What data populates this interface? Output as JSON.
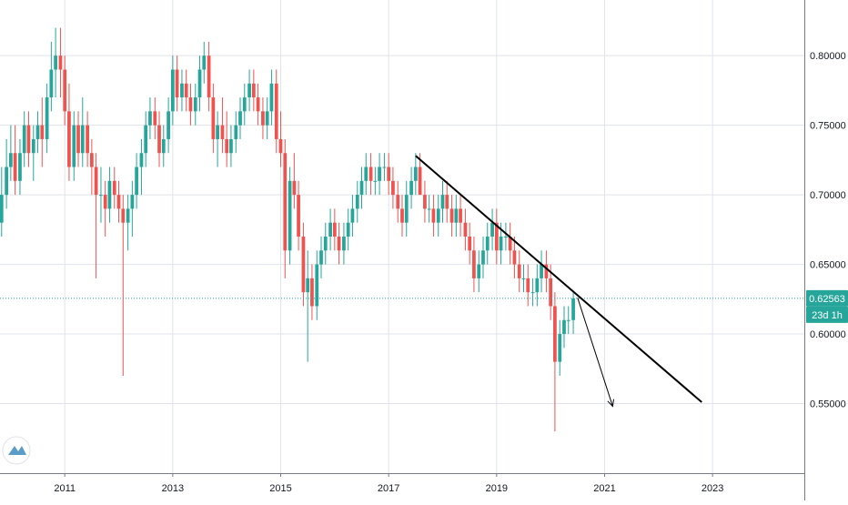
{
  "chart_data": {
    "type": "candlestick",
    "interval": "monthly",
    "colors": {
      "up": "#26a69a",
      "down": "#ef5350",
      "grid": "#e0e3eb",
      "axis_text": "#131722",
      "last_price": "#26a69a",
      "trendline": "#000000",
      "arrow": "#000000",
      "logo": "#5b9cc9"
    },
    "y_ticks": [
      "0.55000",
      "0.60000",
      "0.65000",
      "0.70000",
      "0.75000",
      "0.80000"
    ],
    "y_tick_values": [
      0.55,
      0.6,
      0.65,
      0.7,
      0.75,
      0.8
    ],
    "x_ticks": [
      "2011",
      "2013",
      "2015",
      "2017",
      "2019",
      "2021",
      "2023"
    ],
    "x_tick_values": [
      2011,
      2013,
      2015,
      2017,
      2019,
      2021,
      2023
    ],
    "ylim": [
      0.5,
      0.84
    ],
    "xlim": [
      2009.8,
      2024.7
    ],
    "last_price": {
      "value": 0.62563,
      "label": "0.62563",
      "countdown": "23d 1h"
    },
    "trendline": {
      "start": [
        2017.5,
        0.728
      ],
      "end": [
        2022.8,
        0.551
      ]
    },
    "projection_arrow": {
      "start": [
        2020.5,
        0.626
      ],
      "end": [
        2021.15,
        0.548
      ]
    },
    "candles": [
      [
        2009.83,
        0.68,
        0.72,
        0.67,
        0.7
      ],
      [
        2009.92,
        0.7,
        0.74,
        0.69,
        0.72
      ],
      [
        2010.0,
        0.72,
        0.75,
        0.71,
        0.73
      ],
      [
        2010.08,
        0.73,
        0.75,
        0.7,
        0.71
      ],
      [
        2010.17,
        0.71,
        0.74,
        0.7,
        0.73
      ],
      [
        2010.25,
        0.73,
        0.76,
        0.72,
        0.75
      ],
      [
        2010.33,
        0.75,
        0.76,
        0.72,
        0.73
      ],
      [
        2010.42,
        0.73,
        0.75,
        0.71,
        0.74
      ],
      [
        2010.5,
        0.74,
        0.76,
        0.73,
        0.75
      ],
      [
        2010.58,
        0.75,
        0.77,
        0.72,
        0.74
      ],
      [
        2010.67,
        0.74,
        0.78,
        0.73,
        0.77
      ],
      [
        2010.75,
        0.77,
        0.81,
        0.76,
        0.79
      ],
      [
        2010.83,
        0.79,
        0.82,
        0.77,
        0.8
      ],
      [
        2010.92,
        0.8,
        0.82,
        0.77,
        0.79
      ],
      [
        2011.0,
        0.79,
        0.8,
        0.75,
        0.76
      ],
      [
        2011.08,
        0.76,
        0.78,
        0.71,
        0.72
      ],
      [
        2011.17,
        0.72,
        0.76,
        0.71,
        0.75
      ],
      [
        2011.25,
        0.75,
        0.76,
        0.72,
        0.73
      ],
      [
        2011.33,
        0.73,
        0.77,
        0.72,
        0.75
      ],
      [
        2011.42,
        0.75,
        0.76,
        0.72,
        0.73
      ],
      [
        2011.5,
        0.73,
        0.74,
        0.7,
        0.72
      ],
      [
        2011.58,
        0.72,
        0.73,
        0.64,
        0.7
      ],
      [
        2011.67,
        0.7,
        0.72,
        0.68,
        0.7
      ],
      [
        2011.75,
        0.7,
        0.71,
        0.67,
        0.69
      ],
      [
        2011.83,
        0.69,
        0.72,
        0.68,
        0.71
      ],
      [
        2011.92,
        0.71,
        0.72,
        0.69,
        0.7
      ],
      [
        2012.0,
        0.7,
        0.71,
        0.68,
        0.69
      ],
      [
        2012.08,
        0.69,
        0.7,
        0.57,
        0.68
      ],
      [
        2012.17,
        0.68,
        0.7,
        0.66,
        0.69
      ],
      [
        2012.25,
        0.69,
        0.71,
        0.67,
        0.7
      ],
      [
        2012.33,
        0.7,
        0.73,
        0.69,
        0.72
      ],
      [
        2012.42,
        0.72,
        0.74,
        0.7,
        0.73
      ],
      [
        2012.5,
        0.73,
        0.76,
        0.72,
        0.75
      ],
      [
        2012.58,
        0.75,
        0.77,
        0.74,
        0.76
      ],
      [
        2012.67,
        0.76,
        0.77,
        0.74,
        0.75
      ],
      [
        2012.75,
        0.75,
        0.76,
        0.72,
        0.73
      ],
      [
        2012.83,
        0.73,
        0.75,
        0.72,
        0.74
      ],
      [
        2012.92,
        0.74,
        0.77,
        0.73,
        0.76
      ],
      [
        2013.0,
        0.76,
        0.8,
        0.75,
        0.79
      ],
      [
        2013.08,
        0.79,
        0.8,
        0.76,
        0.77
      ],
      [
        2013.17,
        0.77,
        0.79,
        0.76,
        0.78
      ],
      [
        2013.25,
        0.78,
        0.79,
        0.76,
        0.77
      ],
      [
        2013.33,
        0.77,
        0.78,
        0.75,
        0.76
      ],
      [
        2013.42,
        0.76,
        0.78,
        0.75,
        0.77
      ],
      [
        2013.5,
        0.77,
        0.8,
        0.76,
        0.79
      ],
      [
        2013.58,
        0.79,
        0.81,
        0.78,
        0.8
      ],
      [
        2013.67,
        0.8,
        0.81,
        0.76,
        0.77
      ],
      [
        2013.75,
        0.77,
        0.78,
        0.73,
        0.74
      ],
      [
        2013.83,
        0.74,
        0.76,
        0.72,
        0.75
      ],
      [
        2013.92,
        0.75,
        0.77,
        0.73,
        0.74
      ],
      [
        2014.0,
        0.74,
        0.76,
        0.72,
        0.73
      ],
      [
        2014.08,
        0.73,
        0.75,
        0.72,
        0.74
      ],
      [
        2014.17,
        0.74,
        0.76,
        0.73,
        0.75
      ],
      [
        2014.25,
        0.75,
        0.77,
        0.74,
        0.76
      ],
      [
        2014.33,
        0.76,
        0.78,
        0.75,
        0.77
      ],
      [
        2014.42,
        0.77,
        0.79,
        0.76,
        0.78
      ],
      [
        2014.5,
        0.78,
        0.79,
        0.76,
        0.77
      ],
      [
        2014.58,
        0.77,
        0.78,
        0.75,
        0.76
      ],
      [
        2014.67,
        0.76,
        0.77,
        0.74,
        0.75
      ],
      [
        2014.75,
        0.75,
        0.77,
        0.74,
        0.76
      ],
      [
        2014.83,
        0.76,
        0.79,
        0.75,
        0.78
      ],
      [
        2014.92,
        0.78,
        0.79,
        0.73,
        0.74
      ],
      [
        2015.0,
        0.74,
        0.76,
        0.72,
        0.73
      ],
      [
        2015.08,
        0.73,
        0.74,
        0.64,
        0.66
      ],
      [
        2015.17,
        0.66,
        0.72,
        0.65,
        0.71
      ],
      [
        2015.25,
        0.71,
        0.73,
        0.69,
        0.7
      ],
      [
        2015.33,
        0.7,
        0.71,
        0.66,
        0.67
      ],
      [
        2015.42,
        0.67,
        0.68,
        0.62,
        0.63
      ],
      [
        2015.5,
        0.63,
        0.66,
        0.58,
        0.64
      ],
      [
        2015.58,
        0.64,
        0.65,
        0.61,
        0.62
      ],
      [
        2015.67,
        0.62,
        0.66,
        0.61,
        0.65
      ],
      [
        2015.75,
        0.65,
        0.67,
        0.64,
        0.66
      ],
      [
        2015.83,
        0.66,
        0.68,
        0.65,
        0.67
      ],
      [
        2015.92,
        0.67,
        0.69,
        0.66,
        0.68
      ],
      [
        2016.0,
        0.68,
        0.69,
        0.66,
        0.67
      ],
      [
        2016.08,
        0.67,
        0.68,
        0.65,
        0.66
      ],
      [
        2016.17,
        0.66,
        0.68,
        0.65,
        0.67
      ],
      [
        2016.25,
        0.67,
        0.69,
        0.66,
        0.68
      ],
      [
        2016.33,
        0.68,
        0.7,
        0.67,
        0.69
      ],
      [
        2016.42,
        0.69,
        0.71,
        0.68,
        0.7
      ],
      [
        2016.5,
        0.7,
        0.72,
        0.69,
        0.71
      ],
      [
        2016.58,
        0.71,
        0.73,
        0.7,
        0.72
      ],
      [
        2016.67,
        0.72,
        0.73,
        0.7,
        0.71
      ],
      [
        2016.75,
        0.71,
        0.72,
        0.7,
        0.71
      ],
      [
        2016.83,
        0.71,
        0.73,
        0.7,
        0.72
      ],
      [
        2016.92,
        0.72,
        0.73,
        0.71,
        0.72
      ],
      [
        2017.0,
        0.72,
        0.73,
        0.7,
        0.71
      ],
      [
        2017.08,
        0.71,
        0.72,
        0.69,
        0.7
      ],
      [
        2017.17,
        0.7,
        0.71,
        0.68,
        0.69
      ],
      [
        2017.25,
        0.69,
        0.7,
        0.67,
        0.68
      ],
      [
        2017.33,
        0.68,
        0.71,
        0.67,
        0.7
      ],
      [
        2017.42,
        0.7,
        0.72,
        0.69,
        0.71
      ],
      [
        2017.5,
        0.71,
        0.73,
        0.7,
        0.72
      ],
      [
        2017.58,
        0.72,
        0.73,
        0.7,
        0.7
      ],
      [
        2017.67,
        0.7,
        0.71,
        0.68,
        0.69
      ],
      [
        2017.75,
        0.69,
        0.7,
        0.68,
        0.69
      ],
      [
        2017.83,
        0.69,
        0.7,
        0.67,
        0.68
      ],
      [
        2017.92,
        0.68,
        0.7,
        0.67,
        0.69
      ],
      [
        2018.0,
        0.69,
        0.71,
        0.68,
        0.7
      ],
      [
        2018.08,
        0.7,
        0.71,
        0.68,
        0.69
      ],
      [
        2018.17,
        0.69,
        0.7,
        0.67,
        0.68
      ],
      [
        2018.25,
        0.68,
        0.7,
        0.67,
        0.69
      ],
      [
        2018.33,
        0.69,
        0.7,
        0.67,
        0.68
      ],
      [
        2018.42,
        0.68,
        0.69,
        0.66,
        0.67
      ],
      [
        2018.5,
        0.67,
        0.68,
        0.65,
        0.66
      ],
      [
        2018.58,
        0.66,
        0.67,
        0.63,
        0.64
      ],
      [
        2018.67,
        0.64,
        0.66,
        0.63,
        0.65
      ],
      [
        2018.75,
        0.65,
        0.67,
        0.64,
        0.66
      ],
      [
        2018.83,
        0.66,
        0.68,
        0.65,
        0.67
      ],
      [
        2018.92,
        0.67,
        0.69,
        0.66,
        0.68
      ],
      [
        2019.0,
        0.68,
        0.69,
        0.65,
        0.66
      ],
      [
        2019.08,
        0.66,
        0.68,
        0.65,
        0.67
      ],
      [
        2019.17,
        0.67,
        0.68,
        0.66,
        0.67
      ],
      [
        2019.25,
        0.67,
        0.68,
        0.65,
        0.66
      ],
      [
        2019.33,
        0.66,
        0.67,
        0.64,
        0.65
      ],
      [
        2019.42,
        0.65,
        0.66,
        0.63,
        0.64
      ],
      [
        2019.5,
        0.64,
        0.65,
        0.63,
        0.64
      ],
      [
        2019.58,
        0.64,
        0.65,
        0.62,
        0.63
      ],
      [
        2019.67,
        0.63,
        0.64,
        0.62,
        0.63
      ],
      [
        2019.75,
        0.63,
        0.65,
        0.62,
        0.64
      ],
      [
        2019.83,
        0.64,
        0.66,
        0.63,
        0.65
      ],
      [
        2019.92,
        0.65,
        0.66,
        0.63,
        0.64
      ],
      [
        2020.0,
        0.64,
        0.65,
        0.61,
        0.62
      ],
      [
        2020.08,
        0.62,
        0.63,
        0.53,
        0.58
      ],
      [
        2020.17,
        0.58,
        0.61,
        0.57,
        0.6
      ],
      [
        2020.25,
        0.6,
        0.62,
        0.59,
        0.61
      ],
      [
        2020.33,
        0.61,
        0.62,
        0.6,
        0.61
      ],
      [
        2020.42,
        0.61,
        0.63,
        0.6,
        0.6256
      ]
    ]
  }
}
